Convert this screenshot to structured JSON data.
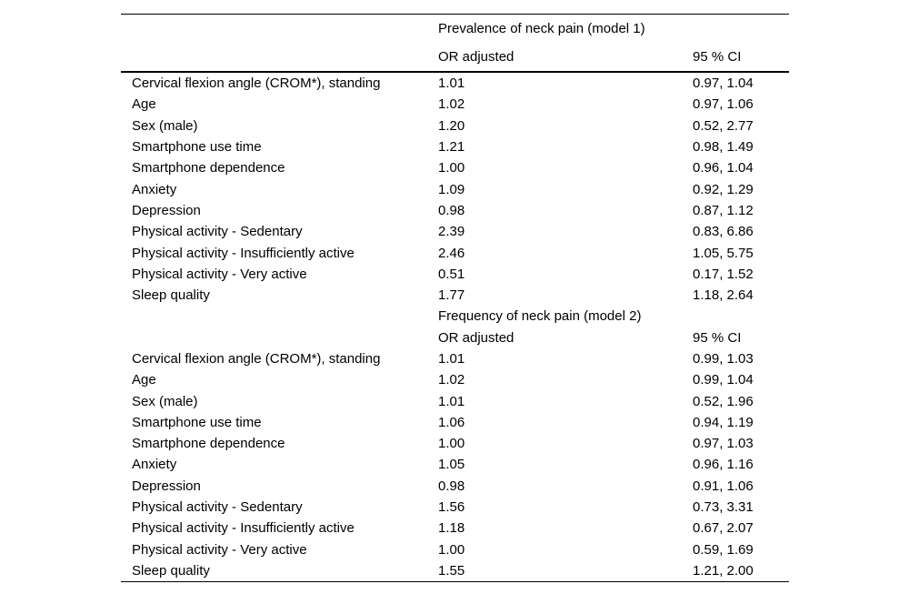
{
  "table": {
    "sections": [
      {
        "title": "Prevalence of neck pain (model 1)",
        "col_or": "OR adjusted",
        "col_ci": "95 % CI",
        "rows": [
          {
            "label": "Cervical flexion angle (CROM*), standing",
            "or": "1.01",
            "ci": "0.97, 1.04"
          },
          {
            "label": "Age",
            "or": "1.02",
            "ci": "0.97, 1.06"
          },
          {
            "label": "Sex (male)",
            "or": "1.20",
            "ci": "0.52, 2.77"
          },
          {
            "label": "Smartphone use time",
            "or": "1.21",
            "ci": "0.98, 1.49"
          },
          {
            "label": "Smartphone dependence",
            "or": "1.00",
            "ci": "0.96, 1.04"
          },
          {
            "label": "Anxiety",
            "or": "1.09",
            "ci": "0.92, 1.29"
          },
          {
            "label": "Depression",
            "or": "0.98",
            "ci": "0.87, 1.12"
          },
          {
            "label": "Physical activity - Sedentary",
            "or": "2.39",
            "ci": "0.83, 6.86"
          },
          {
            "label": "Physical activity - Insufficiently active",
            "or": "2.46",
            "ci": "1.05, 5.75"
          },
          {
            "label": "Physical activity - Very active",
            "or": "0.51",
            "ci": "0.17, 1.52"
          },
          {
            "label": "Sleep quality",
            "or": "1.77",
            "ci": "1.18, 2.64"
          }
        ]
      },
      {
        "title": "Frequency of neck pain (model 2)",
        "col_or": "OR adjusted",
        "col_ci": "95 % CI",
        "rows": [
          {
            "label": "Cervical flexion angle (CROM*), standing",
            "or": "1.01",
            "ci": "0.99, 1.03"
          },
          {
            "label": "Age",
            "or": "1.02",
            "ci": "0.99, 1.04"
          },
          {
            "label": "Sex (male)",
            "or": "1.01",
            "ci": "0.52, 1.96"
          },
          {
            "label": "Smartphone use time",
            "or": "1.06",
            "ci": "0.94, 1.19"
          },
          {
            "label": "Smartphone dependence",
            "or": "1.00",
            "ci": "0.97, 1.03"
          },
          {
            "label": "Anxiety",
            "or": "1.05",
            "ci": "0.96, 1.16"
          },
          {
            "label": "Depression",
            "or": "0.98",
            "ci": "0.91, 1.06"
          },
          {
            "label": "Physical activity - Sedentary",
            "or": "1.56",
            "ci": "0.73, 3.31"
          },
          {
            "label": "Physical activity - Insufficiently active",
            "or": "1.18",
            "ci": "0.67, 2.07"
          },
          {
            "label": "Physical activity - Very active",
            "or": "1.00",
            "ci": "0.59, 1.69"
          },
          {
            "label": "Sleep quality",
            "or": "1.55",
            "ci": "1.21, 2.00"
          }
        ]
      }
    ]
  }
}
